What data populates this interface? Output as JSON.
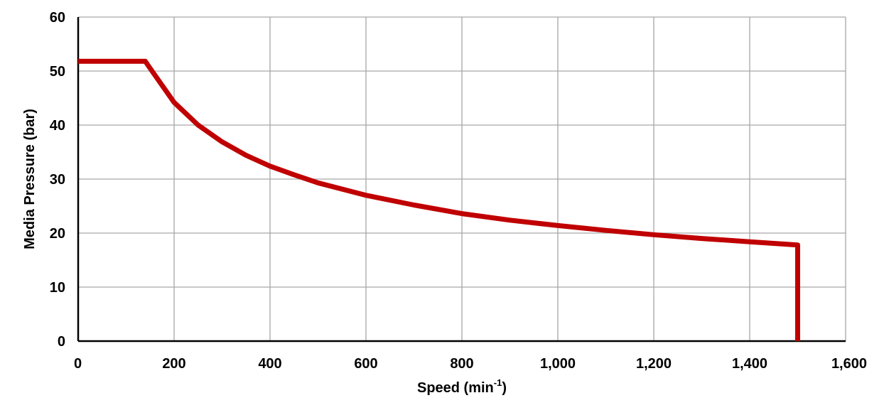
{
  "chart_data": {
    "type": "line",
    "xlabel": "Speed (min",
    "xlabel_sup": "-1",
    "xlabel_end": ")",
    "ylabel": "Media Pressure (bar)",
    "xlim": [
      0,
      1600
    ],
    "ylim": [
      0,
      60
    ],
    "x_ticks": [
      0,
      200,
      400,
      600,
      800,
      1000,
      1200,
      1400,
      1600
    ],
    "x_tick_labels": [
      "0",
      "200",
      "400",
      "600",
      "800",
      "1,000",
      "1,200",
      "1,400",
      "1,600"
    ],
    "y_ticks": [
      0,
      10,
      20,
      30,
      40,
      50,
      60
    ],
    "y_tick_labels": [
      "0",
      "10",
      "20",
      "30",
      "40",
      "50",
      "60"
    ],
    "grid": true,
    "legend": "none",
    "series": [
      {
        "color": "#c00000",
        "points": [
          [
            0,
            51.8
          ],
          [
            140,
            51.8
          ],
          [
            150,
            50.5
          ],
          [
            200,
            44.2
          ],
          [
            250,
            40.0
          ],
          [
            300,
            36.9
          ],
          [
            350,
            34.4
          ],
          [
            400,
            32.4
          ],
          [
            450,
            30.8
          ],
          [
            500,
            29.3
          ],
          [
            600,
            27.0
          ],
          [
            700,
            25.2
          ],
          [
            800,
            23.6
          ],
          [
            900,
            22.4
          ],
          [
            1000,
            21.4
          ],
          [
            1100,
            20.5
          ],
          [
            1200,
            19.7
          ],
          [
            1300,
            19.0
          ],
          [
            1400,
            18.4
          ],
          [
            1500,
            17.8
          ],
          [
            1500,
            0
          ]
        ]
      }
    ]
  }
}
